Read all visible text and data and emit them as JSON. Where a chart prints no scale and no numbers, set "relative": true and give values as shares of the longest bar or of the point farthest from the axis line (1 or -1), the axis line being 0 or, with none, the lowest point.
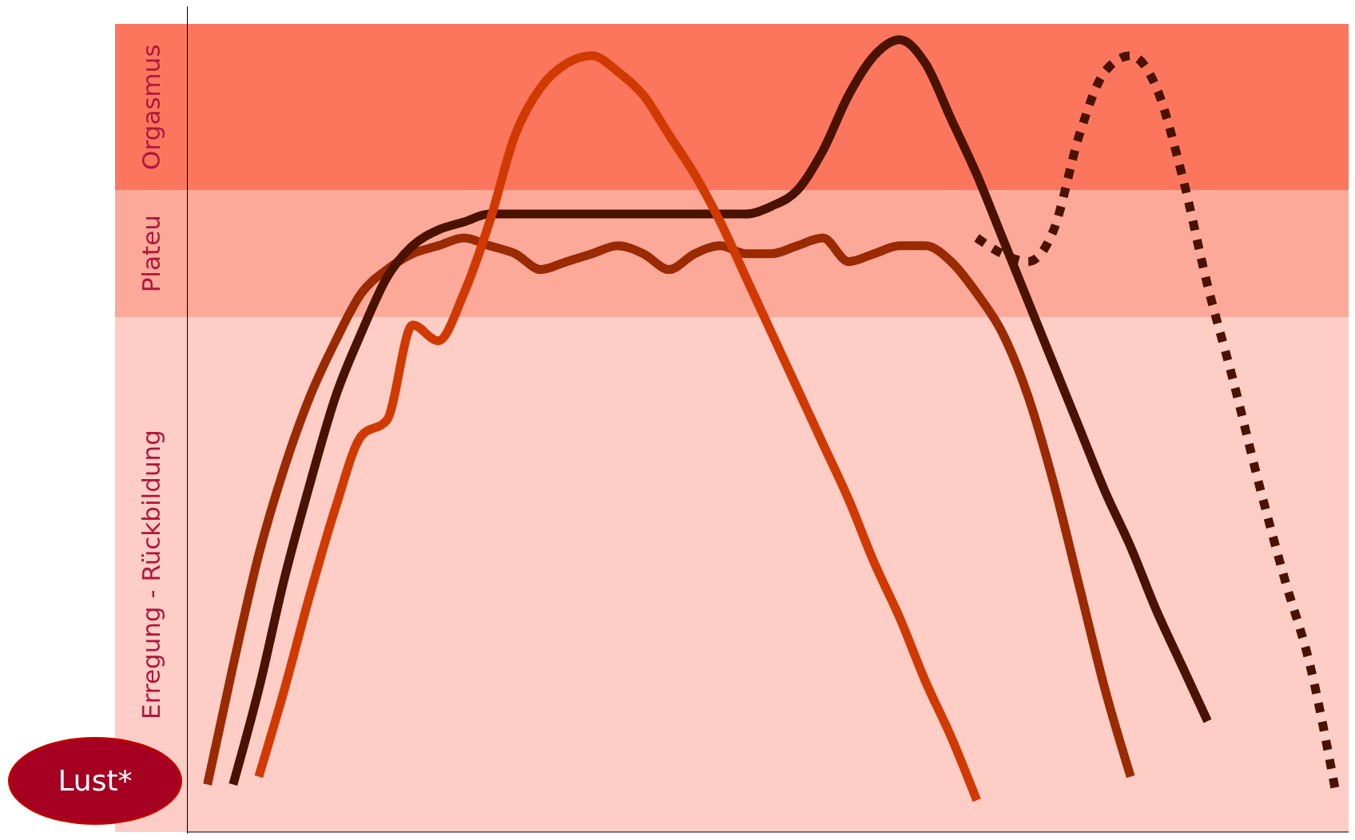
{
  "chart_data": {
    "type": "line",
    "relative": true,
    "marker": "none",
    "categories": [
      null,
      null,
      null,
      null,
      null,
      null,
      null,
      null,
      null,
      null,
      null,
      null,
      null,
      null,
      null,
      null,
      null,
      null,
      null,
      null,
      null,
      null,
      null,
      null,
      null,
      null,
      null,
      null,
      null,
      null,
      null,
      null,
      null,
      null,
      null,
      null,
      null,
      null,
      null,
      null,
      null,
      null,
      null,
      null,
      null
    ],
    "series": [
      {
        "color": "#9a2a00",
        "line_style": "solid",
        "values": [
          0.06,
          0.21,
          0.35,
          0.46,
          0.55,
          0.62,
          0.68,
          0.71,
          0.73,
          0.74,
          0.75,
          0.74,
          0.73,
          0.71,
          0.72,
          0.73,
          0.74,
          0.73,
          0.71,
          0.73,
          0.74,
          0.73,
          0.73,
          0.74,
          0.75,
          0.72,
          0.73,
          0.74,
          0.74,
          0.72,
          0.68,
          0.63,
          0.55,
          0.44,
          0.31,
          0.18,
          0.07,
          null,
          null,
          null,
          null,
          null,
          null,
          null,
          null
        ]
      },
      {
        "color": "#4a1200",
        "line_style": "solid",
        "values": [
          null,
          0.06,
          0.18,
          0.32,
          0.44,
          0.55,
          0.63,
          0.7,
          0.74,
          0.76,
          0.77,
          0.78,
          0.78,
          0.78,
          0.78,
          0.78,
          0.78,
          0.78,
          0.78,
          0.78,
          0.78,
          0.78,
          0.79,
          0.81,
          0.86,
          0.93,
          0.98,
          1.0,
          0.97,
          0.9,
          0.83,
          0.75,
          0.67,
          0.59,
          0.51,
          0.43,
          0.36,
          0.28,
          0.21,
          0.14,
          null,
          null,
          null,
          null,
          null
        ]
      },
      {
        "color": "#4a1200",
        "line_style": "dotted",
        "values": [
          null,
          null,
          null,
          null,
          null,
          null,
          null,
          null,
          null,
          null,
          null,
          null,
          null,
          null,
          null,
          null,
          null,
          null,
          null,
          null,
          null,
          null,
          null,
          null,
          null,
          null,
          null,
          null,
          null,
          null,
          0.75,
          0.73,
          0.72,
          0.76,
          0.88,
          0.96,
          0.98,
          0.94,
          0.83,
          0.69,
          0.57,
          0.44,
          0.32,
          0.21,
          0.05
        ]
      },
      {
        "color": "#d03a00",
        "line_style": "solid",
        "values": [
          null,
          null,
          0.07,
          0.18,
          0.3,
          0.41,
          0.5,
          0.52,
          0.64,
          0.62,
          0.68,
          0.77,
          0.88,
          0.94,
          0.97,
          0.98,
          0.96,
          0.93,
          0.88,
          0.83,
          0.77,
          0.7,
          0.63,
          0.56,
          0.49,
          0.42,
          0.34,
          0.27,
          0.19,
          0.12,
          0.04,
          null,
          null,
          null,
          null,
          null,
          null,
          null,
          null,
          null,
          null,
          null,
          null,
          null,
          null
        ]
      }
    ],
    "bands": [
      {
        "axis": "y",
        "from": 0,
        "to": 0.65,
        "label": "Erregung - Rückbildung",
        "color": "#fdcdc6"
      },
      {
        "axis": "y",
        "from": 0.65,
        "to": 0.81,
        "label": "Plateu",
        "color": "#fca99a"
      },
      {
        "axis": "y",
        "from": 0.81,
        "to": 1.02,
        "label": "Orgasmus",
        "color": "#fc765e"
      }
    ],
    "annotations": [
      "Lust*"
    ]
  }
}
